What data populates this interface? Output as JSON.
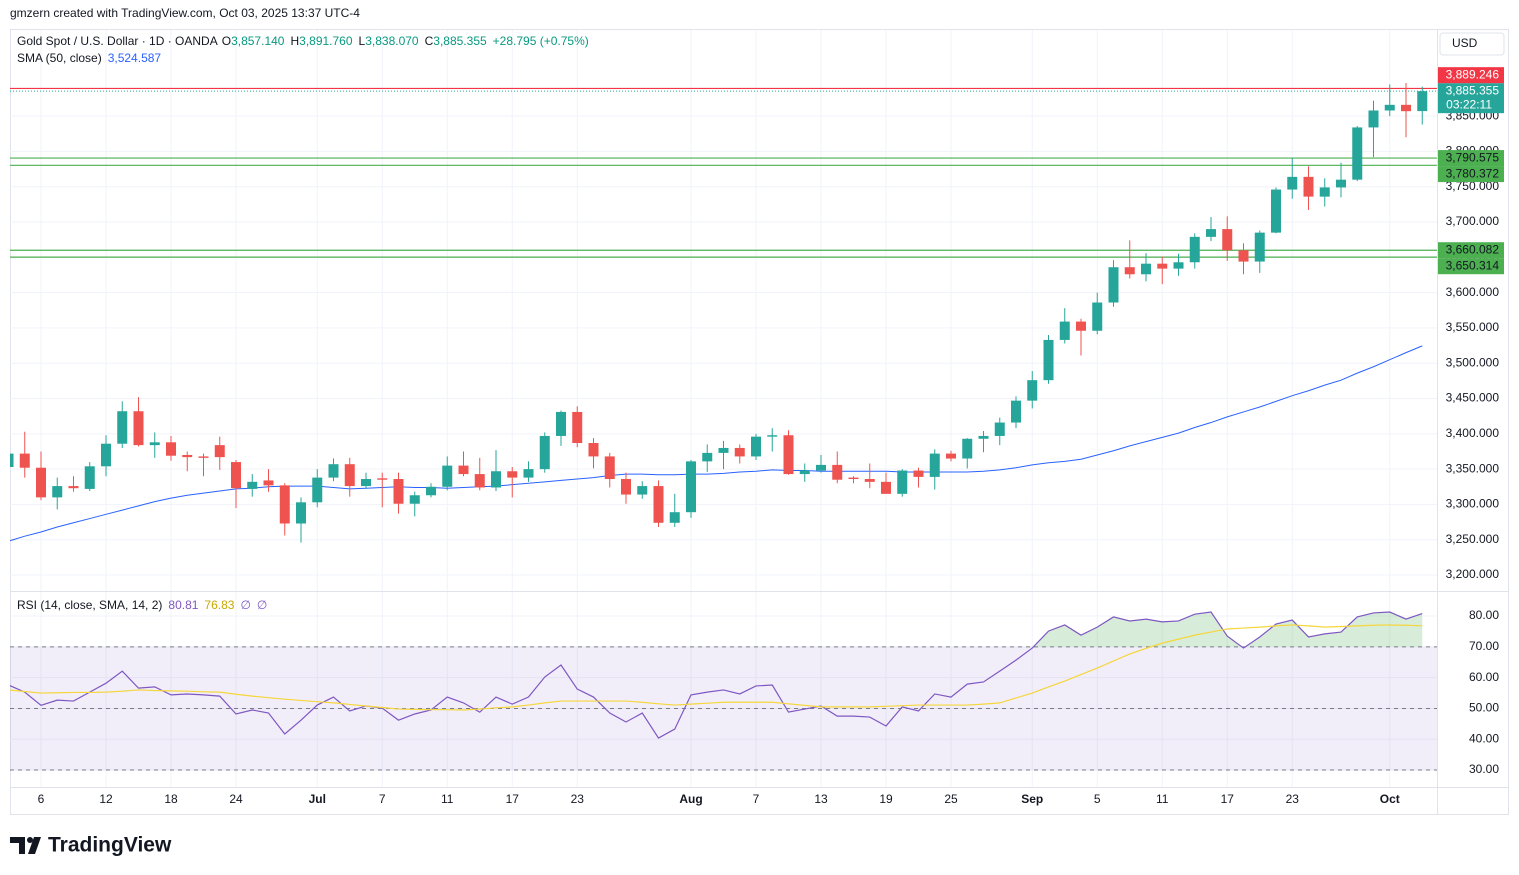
{
  "header": {
    "credit": "gmzern created with TradingView.com, Oct 03, 2025 13:37 UTC-4",
    "brand": "TradingView"
  },
  "chart_data": [
    {
      "type": "candlestick",
      "title": "Gold Spot / U.S. Dollar · 1D · OANDA",
      "ohlc": [
        {
          "key": "O",
          "label": "3,857.140"
        },
        {
          "key": "H",
          "label": "3,891.760"
        },
        {
          "key": "L",
          "label": "3,838.070"
        },
        {
          "key": "C",
          "label": "3,885.355"
        }
      ],
      "change": "+28.795 (+0.75%)",
      "currency": "USD",
      "up_color": "#26a69a",
      "down_color": "#ef5350",
      "categories": [
        null,
        null,
        "6",
        null,
        null,
        null,
        "12",
        null,
        null,
        null,
        "18",
        null,
        null,
        null,
        "24",
        null,
        null,
        null,
        null,
        "Jul",
        null,
        null,
        null,
        "7",
        null,
        null,
        null,
        "11",
        null,
        null,
        null,
        "17",
        null,
        null,
        null,
        "23",
        null,
        null,
        null,
        null,
        null,
        null,
        "Aug",
        null,
        null,
        null,
        "7",
        null,
        null,
        null,
        "13",
        null,
        null,
        null,
        "19",
        null,
        null,
        null,
        "25",
        null,
        null,
        null,
        null,
        "Sep",
        null,
        null,
        null,
        "5",
        null,
        null,
        null,
        "11",
        null,
        null,
        null,
        "17",
        null,
        null,
        null,
        "23",
        null,
        null,
        null,
        null,
        null,
        "Oct",
        null,
        null
      ],
      "open": [
        3353,
        3372,
        3352,
        3310,
        3326,
        3322,
        3354,
        3386,
        3432,
        3384,
        3388,
        3370,
        3368,
        3384,
        3360,
        3322,
        3334,
        3327,
        3273,
        3303,
        3338,
        3357,
        3326,
        3337,
        3336,
        3301,
        3313,
        3325,
        3355,
        3343,
        3324,
        3347,
        3338,
        3350,
        3397,
        3431,
        3387,
        3368,
        3336,
        3314,
        3326,
        3274,
        3289,
        3361,
        3373,
        3380,
        3368,
        3396,
        3398,
        3343,
        3348,
        3356,
        3338,
        3336,
        3332,
        3315,
        3348,
        3339,
        3372,
        3365,
        3393,
        3397,
        3416,
        3447,
        3476,
        3533,
        3559,
        3546,
        3586,
        3636,
        3626,
        3641,
        3634,
        3643,
        3679,
        3690,
        3660,
        3644,
        3685,
        3746,
        3764,
        3736,
        3749,
        3760,
        3834,
        3858,
        3866,
        3857.14
      ],
      "high": [
        3385,
        3403,
        3375,
        3338,
        3340,
        3360,
        3398,
        3446,
        3452,
        3402,
        3397,
        3375,
        3372,
        3396,
        3363,
        3343,
        3350,
        3330,
        3310,
        3350,
        3365,
        3366,
        3345,
        3345,
        3345,
        3318,
        3330,
        3368,
        3375,
        3366,
        3377,
        3353,
        3361,
        3402,
        3433,
        3439,
        3394,
        3373,
        3345,
        3333,
        3334,
        3315,
        3363,
        3385,
        3390,
        3385,
        3400,
        3408,
        3405,
        3358,
        3370,
        3375,
        3340,
        3358,
        3345,
        3350,
        3352,
        3378,
        3376,
        3394,
        3404,
        3423,
        3453,
        3489,
        3540,
        3578,
        3563,
        3600,
        3646,
        3674,
        3656,
        3651,
        3655,
        3684,
        3707,
        3708,
        3670,
        3688,
        3749,
        3791,
        3779,
        3762,
        3784,
        3836,
        3872,
        3895,
        3897,
        3891.76
      ],
      "low": [
        3343,
        3338,
        3306,
        3293,
        3318,
        3319,
        3340,
        3380,
        3382,
        3366,
        3362,
        3347,
        3340,
        3349,
        3295,
        3311,
        3318,
        3256,
        3246,
        3296,
        3333,
        3311,
        3322,
        3296,
        3287,
        3283,
        3310,
        3320,
        3340,
        3320,
        3319,
        3310,
        3332,
        3345,
        3383,
        3381,
        3351,
        3324,
        3301,
        3308,
        3268,
        3268,
        3281,
        3346,
        3350,
        3358,
        3363,
        3375,
        3342,
        3332,
        3345,
        3330,
        3330,
        3323,
        3315,
        3311,
        3324,
        3321,
        3361,
        3351,
        3374,
        3384,
        3408,
        3436,
        3471,
        3528,
        3511,
        3541,
        3580,
        3620,
        3616,
        3612,
        3624,
        3634,
        3673,
        3645,
        3626,
        3628,
        3684,
        3733,
        3717,
        3722,
        3735,
        3758,
        3792,
        3850,
        3820,
        3838.07
      ],
      "close": [
        3372,
        3352,
        3310,
        3326,
        3323,
        3354,
        3386,
        3432,
        3384,
        3388,
        3369,
        3367,
        3366,
        3367,
        3323,
        3332,
        3327,
        3273,
        3303,
        3338,
        3357,
        3326,
        3336,
        3335,
        3301,
        3313,
        3325,
        3355,
        3343,
        3324,
        3347,
        3338,
        3350,
        3397,
        3431,
        3387,
        3368,
        3336,
        3314,
        3326,
        3274,
        3289,
        3361,
        3373,
        3380,
        3368,
        3396,
        3398,
        3343,
        3348,
        3356,
        3335,
        3336,
        3332,
        3315,
        3348,
        3339,
        3372,
        3365,
        3393,
        3397,
        3416,
        3447,
        3476,
        3533,
        3559,
        3546,
        3586,
        3636,
        3626,
        3641,
        3634,
        3643,
        3679,
        3690,
        3660,
        3644,
        3685,
        3746,
        3764,
        3736,
        3749,
        3760,
        3834,
        3858,
        3866,
        3857,
        3885.355
      ],
      "last_price": {
        "label": "3,885.355",
        "countdown": "03:22:11",
        "color": "#26a69a"
      },
      "sma": {
        "name": "SMA (50, close)",
        "value_label": "3,524.587",
        "color": "#2962ff",
        "values": [
          3248,
          3255,
          3261,
          3268,
          3274,
          3280,
          3286,
          3292,
          3298,
          3304,
          3309,
          3313,
          3316,
          3319,
          3322,
          3323,
          3325,
          3326,
          3326,
          3326,
          3324,
          3322,
          3323,
          3324,
          3325,
          3324,
          3324,
          3323,
          3324,
          3325,
          3326,
          3328,
          3330,
          3332,
          3334,
          3336,
          3338,
          3341,
          3343,
          3343,
          3342,
          3342,
          3343,
          3343,
          3344,
          3346,
          3347,
          3349,
          3348,
          3348,
          3347,
          3347,
          3347,
          3347,
          3347,
          3346,
          3346,
          3346,
          3346,
          3346,
          3347,
          3349,
          3352,
          3356,
          3359,
          3361,
          3364,
          3370,
          3376,
          3383,
          3389,
          3395,
          3401,
          3409,
          3416,
          3424,
          3431,
          3438,
          3446,
          3454,
          3461,
          3469,
          3476,
          3486,
          3495,
          3505,
          3515,
          3524.587
        ]
      },
      "levels": [
        {
          "value": 3889.246,
          "label": "3,889.246",
          "color": "#f23645"
        },
        {
          "value": 3790.575,
          "label": "3,790.575",
          "color": "#4caf50"
        },
        {
          "value": 3780.372,
          "label": "3,780.372",
          "color": "#4caf50"
        },
        {
          "value": 3660.082,
          "label": "3,660.082",
          "color": "#4caf50"
        },
        {
          "value": 3650.314,
          "label": "3,650.314",
          "color": "#4caf50"
        }
      ],
      "ylim": [
        3178.8,
        3972
      ],
      "yticks": [
        {
          "value": 3200,
          "label": "3,200.000"
        },
        {
          "value": 3250,
          "label": "3,250.000"
        },
        {
          "value": 3300,
          "label": "3,300.000"
        },
        {
          "value": 3350,
          "label": "3,350.000"
        },
        {
          "value": 3400,
          "label": "3,400.000"
        },
        {
          "value": 3450,
          "label": "3,450.000"
        },
        {
          "value": 3500,
          "label": "3,500.000"
        },
        {
          "value": 3550,
          "label": "3,550.000"
        },
        {
          "value": 3600,
          "label": "3,600.000"
        },
        {
          "value": 3650,
          "label": "3,650.000"
        },
        {
          "value": 3700,
          "label": "3,700.000"
        },
        {
          "value": 3750,
          "label": "3,750.000"
        },
        {
          "value": 3800,
          "label": "3,800.000"
        },
        {
          "value": 3850,
          "label": "3,850.000"
        }
      ],
      "grid": true
    },
    {
      "type": "line",
      "title": "RSI (14, close, SMA, 14, 2)",
      "placeholders": [
        "∅",
        "∅"
      ],
      "series": [
        {
          "color": "#7e57c2",
          "values": [
            57.6,
            55.3,
            51,
            52.7,
            52.4,
            55.3,
            58.2,
            62.1,
            56.6,
            57,
            54.4,
            54.7,
            54.4,
            54,
            48.2,
            49.5,
            48.5,
            41.7,
            46.2,
            51.1,
            53.7,
            49.2,
            50.8,
            50.1,
            46.2,
            48.2,
            49.5,
            53.7,
            51.8,
            48.8,
            53.7,
            51.4,
            53.7,
            60.2,
            64.1,
            56.3,
            53.7,
            48.5,
            45.6,
            48.5,
            40.4,
            43.3,
            54.4,
            55.3,
            56,
            54.7,
            57.3,
            57.6,
            48.8,
            49.8,
            50.8,
            47.5,
            47.5,
            47.2,
            44.3,
            50.5,
            49.2,
            54.7,
            53.7,
            57.9,
            58.6,
            62.1,
            65.7,
            69.6,
            75.1,
            77.1,
            73.8,
            76.4,
            79.7,
            78.4,
            79,
            78.1,
            78.4,
            80.6,
            81.3,
            73.5,
            69.6,
            73.2,
            77.4,
            78.7,
            73.2,
            74.2,
            74.8,
            79.7,
            81,
            81.3,
            79,
            80.81
          ]
        },
        {
          "color": "#f5d63b",
          "values": [
            56,
            55.5,
            55,
            55.1,
            55.2,
            55.2,
            55.3,
            55.6,
            56,
            55.8,
            55.7,
            55.6,
            55.4,
            55.3,
            54.6,
            54,
            53.5,
            53,
            52.6,
            52.2,
            51.8,
            51.3,
            50.8,
            50.3,
            49.8,
            49.7,
            49.6,
            49.6,
            49.5,
            49.8,
            50.2,
            50.5,
            51.1,
            51.8,
            52.4,
            52.4,
            52.4,
            52.4,
            52.4,
            52,
            51.5,
            51.1,
            51.4,
            51.7,
            52,
            52,
            52,
            52,
            51.5,
            51,
            50.5,
            50.5,
            50.5,
            50.5,
            50.7,
            50.9,
            51.1,
            51.1,
            51.1,
            51.1,
            51.4,
            51.8,
            53.4,
            55,
            57,
            58.9,
            61,
            63.1,
            65.4,
            67.7,
            69.5,
            71.2,
            72.5,
            73.8,
            74.8,
            75.8,
            76.1,
            76.4,
            76.8,
            77.1,
            76.8,
            76.4,
            76.6,
            76.8,
            77,
            77.1,
            77,
            76.83
          ]
        }
      ],
      "bands": {
        "upper": 70,
        "middle": 50,
        "lower": 30
      },
      "ylim": [
        24.5,
        87.8
      ],
      "yticks": [
        {
          "value": 30,
          "label": "30.00"
        },
        {
          "value": 40,
          "label": "40.00"
        },
        {
          "value": 50,
          "label": "50.00"
        },
        {
          "value": 60,
          "label": "60.00"
        },
        {
          "value": 70,
          "label": "70.00"
        },
        {
          "value": 80,
          "label": "80.00"
        }
      ],
      "grid": true
    }
  ]
}
